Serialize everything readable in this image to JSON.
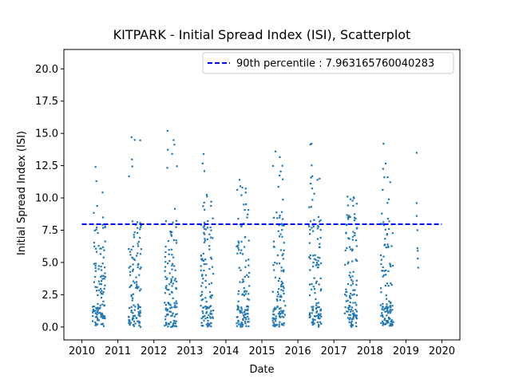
{
  "chart_data": {
    "type": "scatter",
    "title": "KITPARK - Initial Spread Index (ISI), Scatterplot",
    "xlabel": "Date",
    "ylabel": "Initial Spread Index (ISI)",
    "xlim": [
      2009.5,
      2020.5
    ],
    "ylim": [
      -1.0,
      21.5
    ],
    "xticks": [
      "2010",
      "2011",
      "2012",
      "2013",
      "2014",
      "2015",
      "2016",
      "2017",
      "2018",
      "2019",
      "2020"
    ],
    "yticks": [
      "0.0",
      "2.5",
      "5.0",
      "7.5",
      "10.0",
      "12.5",
      "15.0",
      "17.5",
      "20.0"
    ],
    "legend_position": "top-right",
    "colors": {
      "points": "#1f77b4",
      "percentile_line": "#0000ff"
    },
    "percentile_line": {
      "label": "90th percentile : 7.963165760040283",
      "value": 7.963165760040283,
      "x_range": [
        2010.0,
        2020.0
      ]
    },
    "series": [
      {
        "seasons": [
          {
            "year_start": 2010.3,
            "year_end": 2010.65,
            "max": 12.4
          },
          {
            "year_start": 2011.3,
            "year_end": 2011.65,
            "max": 14.7
          },
          {
            "year_start": 2012.3,
            "year_end": 2012.65,
            "max": 15.2
          },
          {
            "year_start": 2013.3,
            "year_end": 2013.65,
            "max": 13.4
          },
          {
            "year_start": 2014.3,
            "year_end": 2014.65,
            "max": 11.4
          },
          {
            "year_start": 2015.3,
            "year_end": 2015.65,
            "max": 13.6
          },
          {
            "year_start": 2016.3,
            "year_end": 2016.65,
            "max": 14.2
          },
          {
            "year_start": 2017.3,
            "year_end": 2017.65,
            "max": 10.1
          },
          {
            "year_start": 2018.3,
            "year_end": 2018.65,
            "max": 14.2
          }
        ],
        "x": [
          2019.3,
          2019.3,
          2019.3,
          2019.32,
          2019.32,
          2019.33,
          2019.33,
          2019.34
        ],
        "y": [
          13.5,
          9.6,
          8.6,
          7.5,
          6.1,
          5.9,
          5.3,
          4.6
        ]
      }
    ]
  }
}
